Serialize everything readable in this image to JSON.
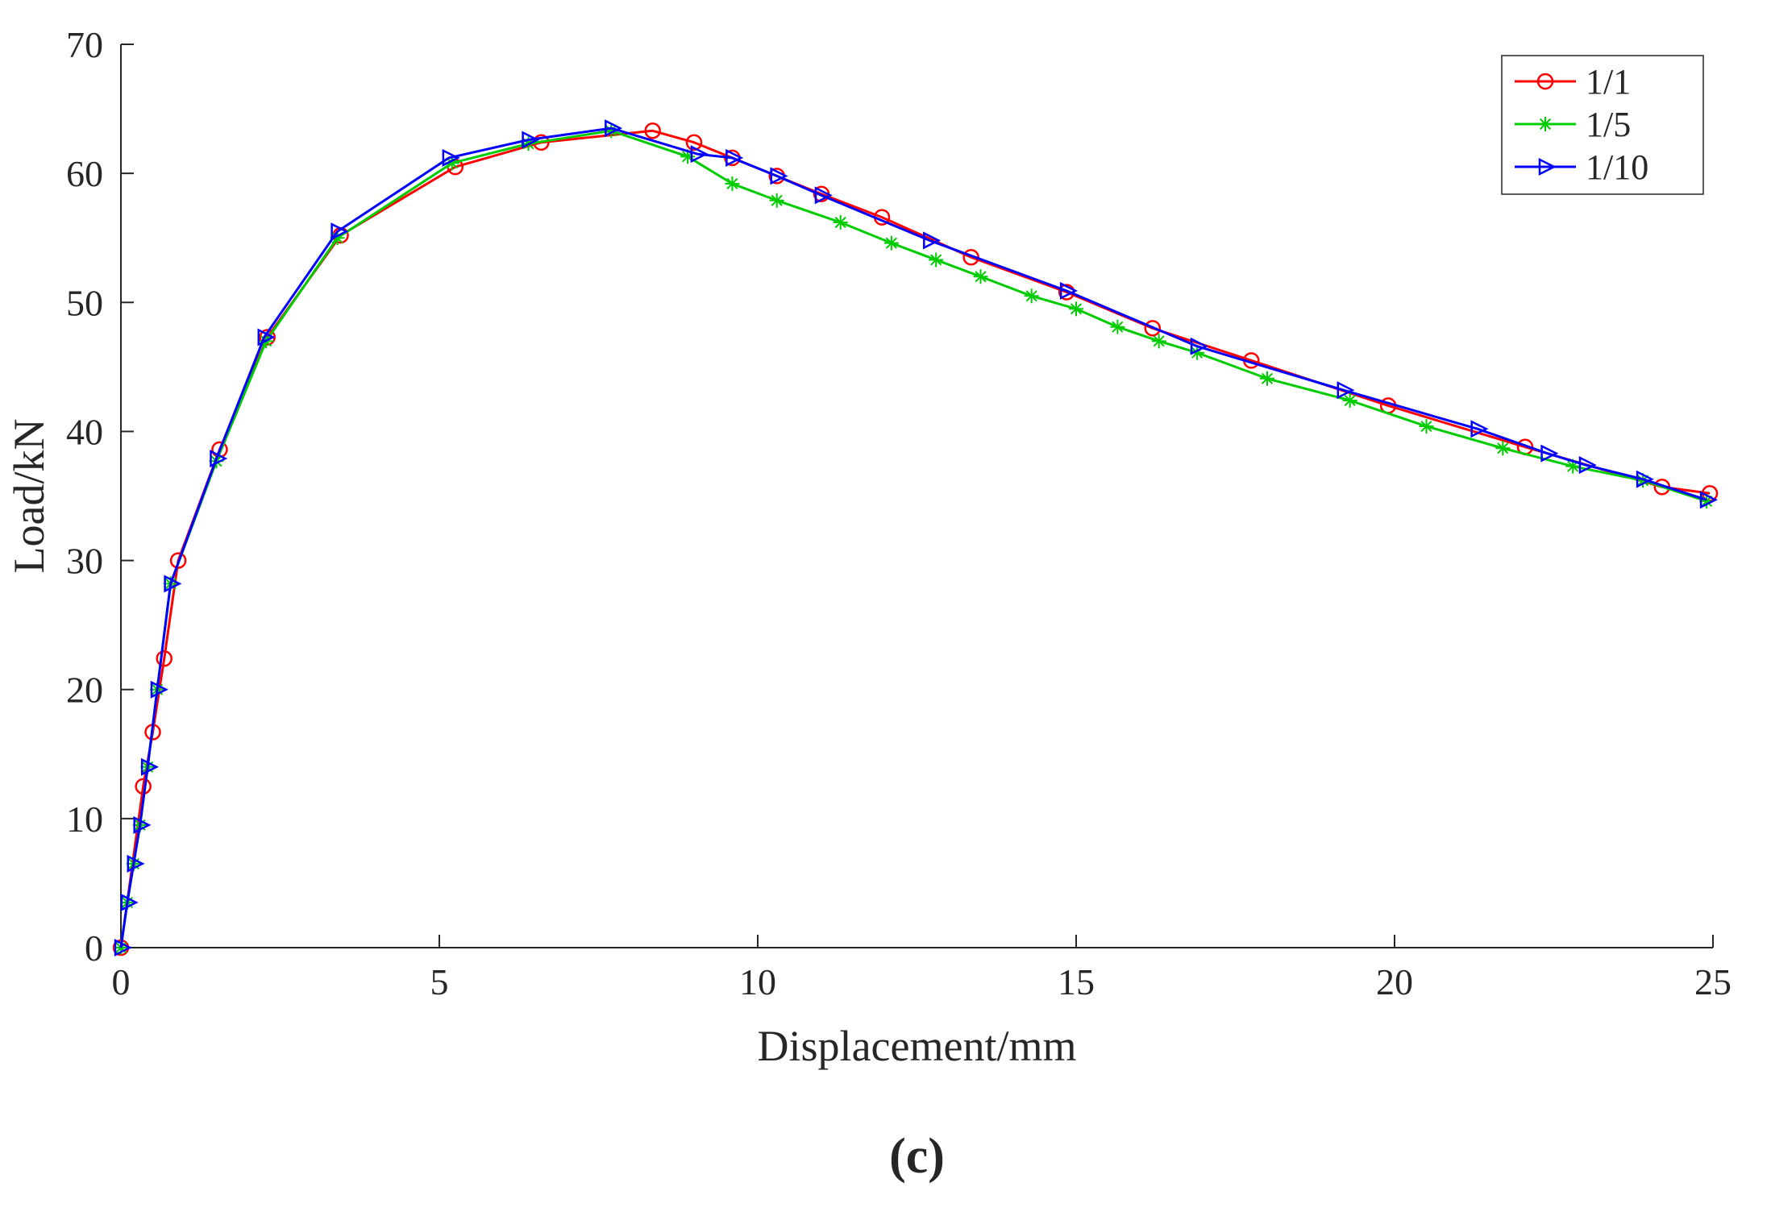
{
  "chart_data": {
    "type": "line",
    "title": "",
    "xlabel": "Displacement/mm",
    "ylabel": "Load/kN",
    "caption": "(c)",
    "xlim": [
      0,
      25
    ],
    "ylim": [
      0,
      70
    ],
    "xticks": [
      0,
      5,
      10,
      15,
      20,
      25
    ],
    "yticks": [
      0,
      10,
      20,
      30,
      40,
      50,
      60,
      70
    ],
    "grid": false,
    "legend_position": "top-right",
    "axis_color": "#262626",
    "background": "#ffffff",
    "series": [
      {
        "name": "1/1",
        "color": "#FF0000",
        "marker": "circle",
        "x": [
          0,
          0.35,
          0.5,
          0.68,
          0.9,
          1.55,
          2.3,
          3.45,
          5.25,
          6.6,
          8.35,
          9.0,
          9.6,
          10.3,
          11.0,
          11.95,
          13.35,
          14.85,
          16.2,
          17.75,
          19.9,
          22.05,
          24.2,
          24.95
        ],
        "y": [
          0,
          12.5,
          16.7,
          22.4,
          30.0,
          38.6,
          47.3,
          55.2,
          60.5,
          62.4,
          63.3,
          62.4,
          61.2,
          59.8,
          58.4,
          56.6,
          53.5,
          50.8,
          48.0,
          45.5,
          42.0,
          38.8,
          35.7,
          35.2
        ]
      },
      {
        "name": "1/5",
        "color": "#00CC00",
        "marker": "asterisk",
        "x": [
          0,
          0.1,
          0.2,
          0.3,
          0.42,
          0.57,
          0.78,
          1.5,
          2.28,
          3.4,
          5.2,
          6.4,
          7.7,
          8.9,
          9.6,
          10.3,
          11.3,
          12.1,
          12.8,
          13.5,
          14.3,
          15.0,
          15.65,
          16.3,
          16.9,
          18.0,
          19.3,
          20.5,
          21.7,
          22.8,
          23.9,
          24.9
        ],
        "y": [
          0,
          3.5,
          6.5,
          9.5,
          14.0,
          20.0,
          28.2,
          37.7,
          47.0,
          55.0,
          60.8,
          62.3,
          63.3,
          61.3,
          59.2,
          57.9,
          56.2,
          54.6,
          53.3,
          52.0,
          50.5,
          49.5,
          48.1,
          47.0,
          46.1,
          44.1,
          42.4,
          40.4,
          38.7,
          37.3,
          36.2,
          34.6
        ]
      },
      {
        "name": "1/10",
        "color": "#0000FF",
        "marker": "triangle-right",
        "x": [
          0,
          0.1,
          0.2,
          0.3,
          0.42,
          0.57,
          0.78,
          1.5,
          2.25,
          3.4,
          5.15,
          6.4,
          7.7,
          9.05,
          9.6,
          10.3,
          11.0,
          12.7,
          14.85,
          16.9,
          19.2,
          21.3,
          22.4,
          23.0,
          23.9,
          24.9
        ],
        "y": [
          0,
          3.5,
          6.5,
          9.5,
          14.0,
          20.0,
          28.2,
          37.9,
          47.3,
          55.5,
          61.2,
          62.6,
          63.5,
          61.5,
          61.2,
          59.8,
          58.3,
          54.8,
          50.9,
          46.6,
          43.2,
          40.2,
          38.3,
          37.4,
          36.3,
          34.7
        ]
      }
    ]
  }
}
